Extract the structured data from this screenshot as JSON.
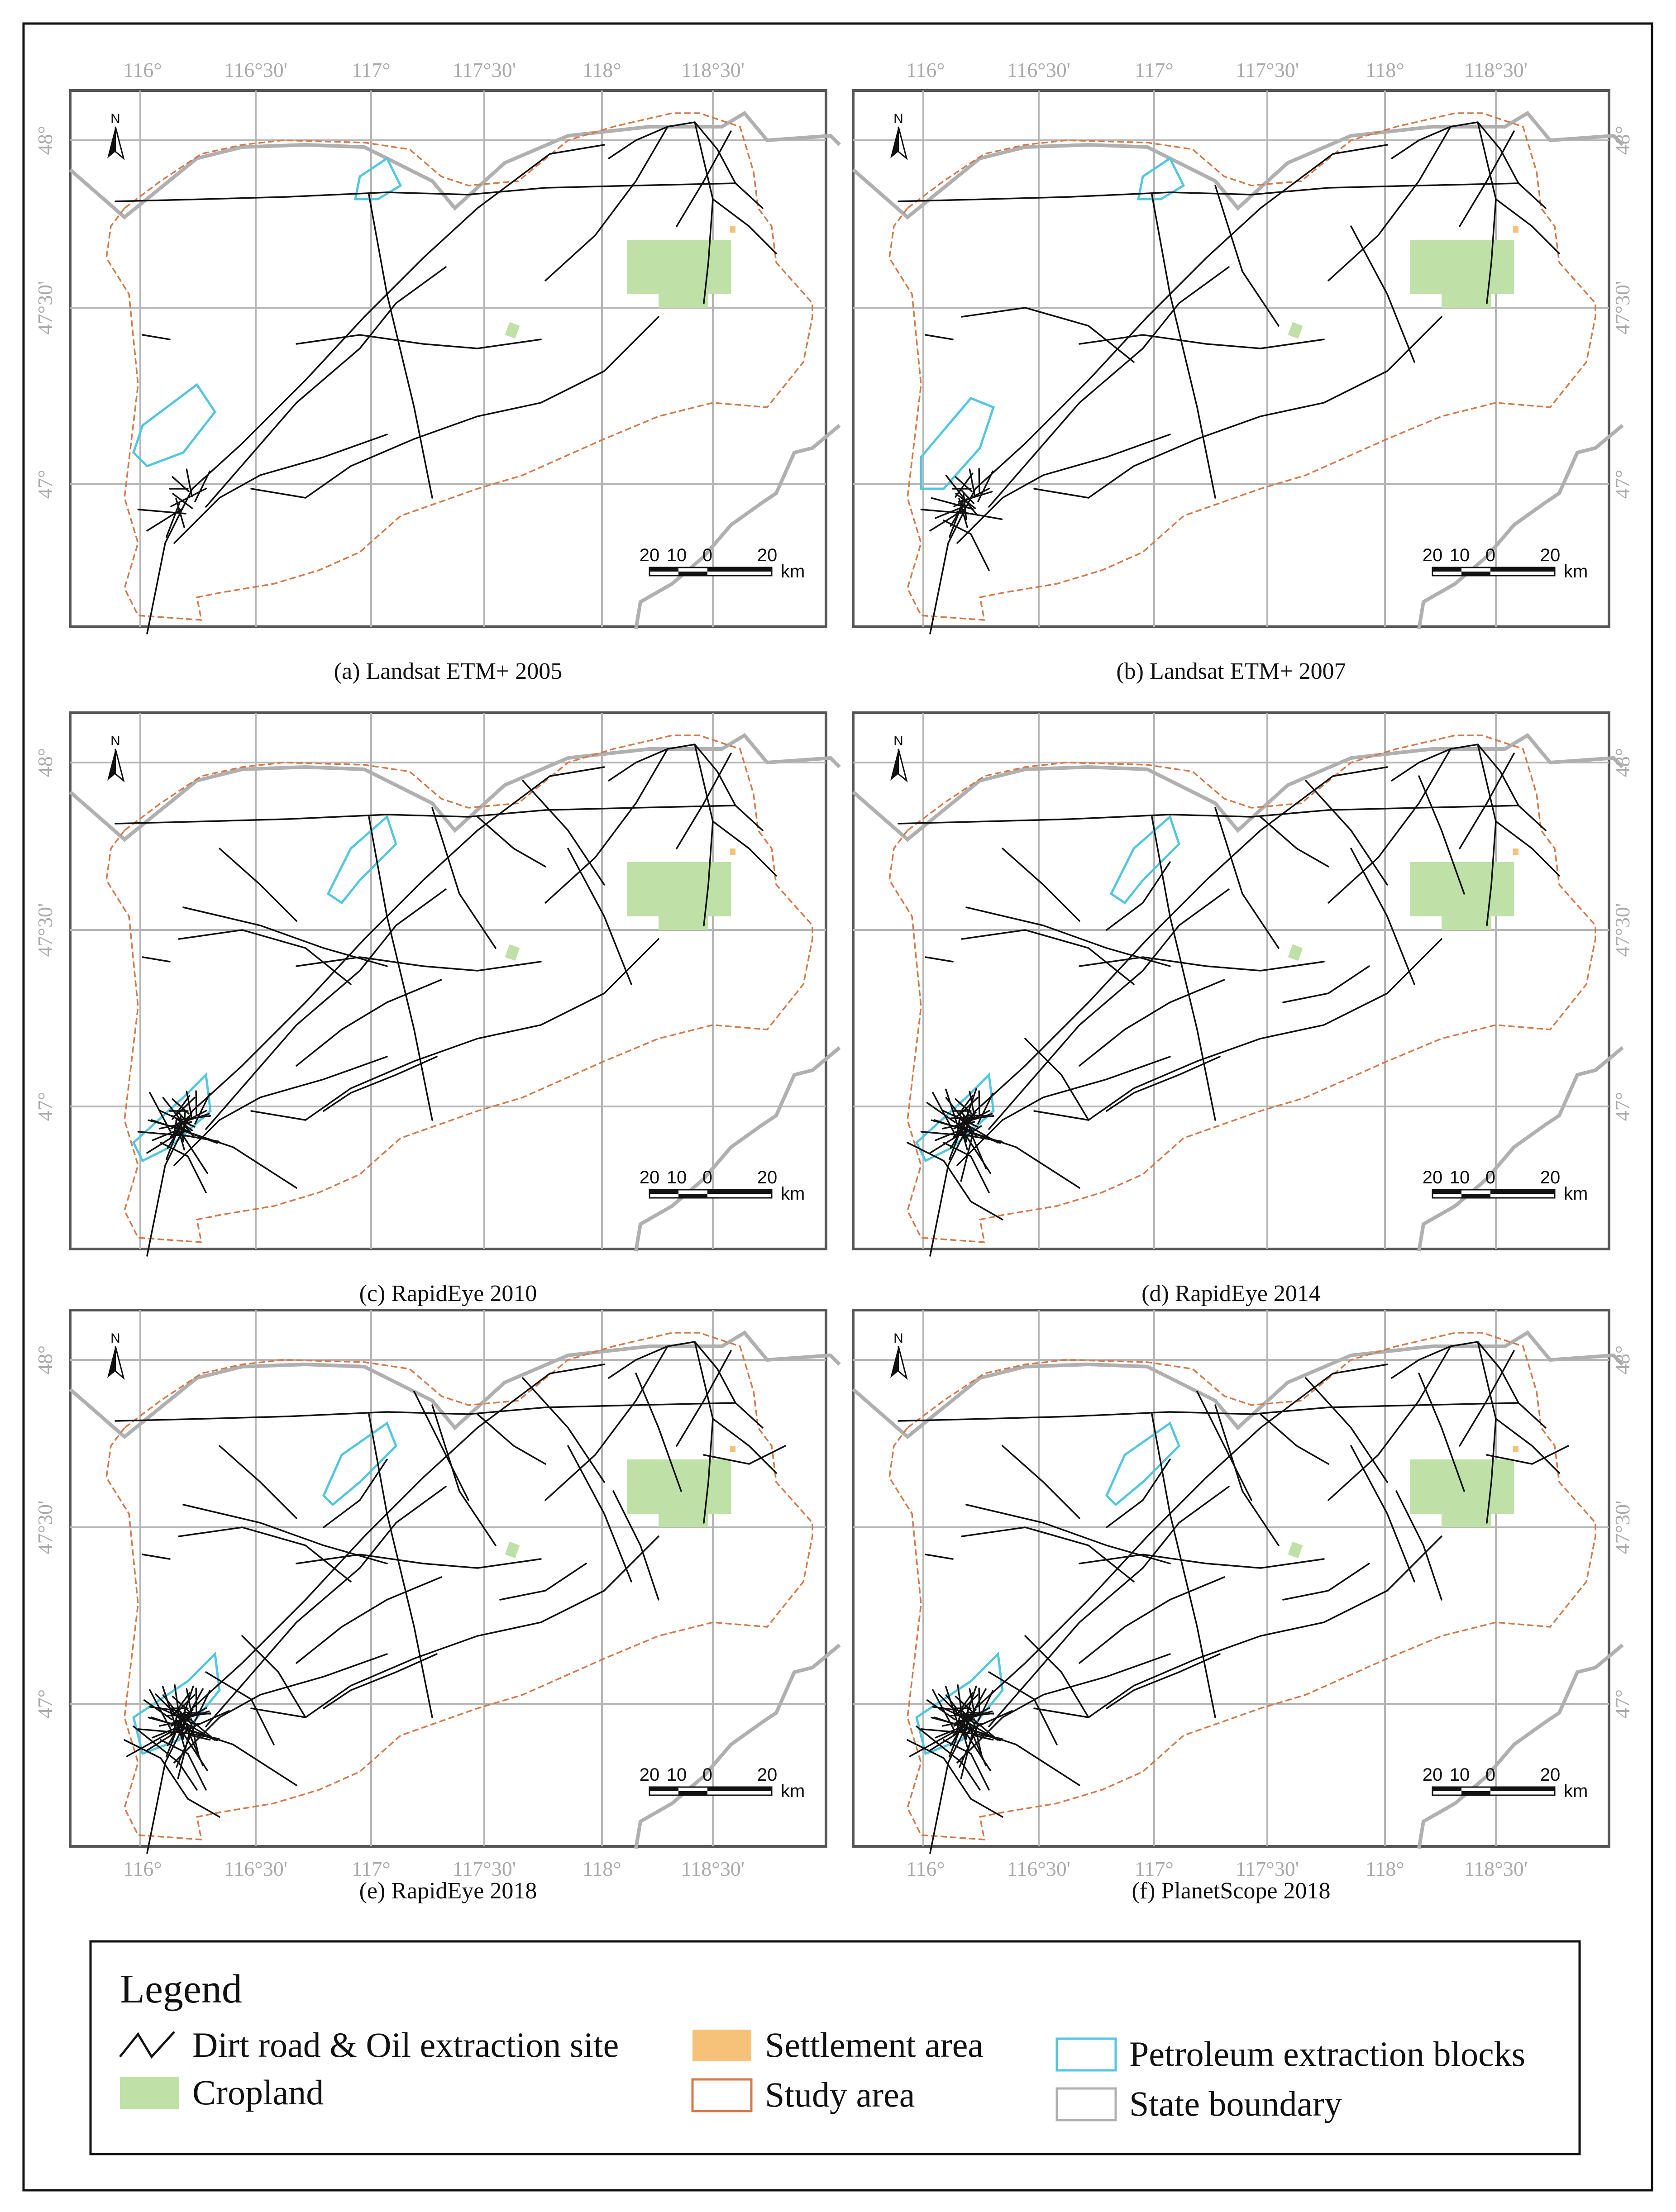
{
  "figure": {
    "grid_top_labels": [
      "116°",
      "116°30'",
      "117°",
      "117°30'",
      "118°",
      "118°30'"
    ],
    "grid_side_labels": [
      "48°",
      "47°30'",
      "47°"
    ],
    "north_label": "N",
    "scale_labels": [
      "20",
      "10",
      "0",
      "20"
    ],
    "scale_unit": "km"
  },
  "panels": [
    {
      "id": "a",
      "caption": "(a) Landsat ETM+ 2005",
      "road_density": 1
    },
    {
      "id": "b",
      "caption": "(b) Landsat ETM+ 2007",
      "road_density": 2
    },
    {
      "id": "c",
      "caption": "(c) RapidEye 2010",
      "road_density": 3
    },
    {
      "id": "d",
      "caption": "(d) RapidEye 2014",
      "road_density": 4
    },
    {
      "id": "e",
      "caption": "(e) RapidEye 2018",
      "road_density": 5
    },
    {
      "id": "f",
      "caption": "(f) PlanetScope 2018",
      "road_density": 5
    }
  ],
  "legend": {
    "title": "Legend",
    "items": [
      {
        "key": "road",
        "label": "Dirt road & Oil extraction site",
        "color": "#111111"
      },
      {
        "key": "cropland",
        "label": "Cropland",
        "color": "#bfe0a6"
      },
      {
        "key": "settlement",
        "label": "Settlement area",
        "color": "#f6c27a"
      },
      {
        "key": "study",
        "label": "Study area",
        "color": "#d4794a"
      },
      {
        "key": "blocks",
        "label": "Petroleum extraction blocks",
        "color": "#53c6e0"
      },
      {
        "key": "state",
        "label": "State boundary",
        "color": "#b0b0b0"
      }
    ]
  }
}
